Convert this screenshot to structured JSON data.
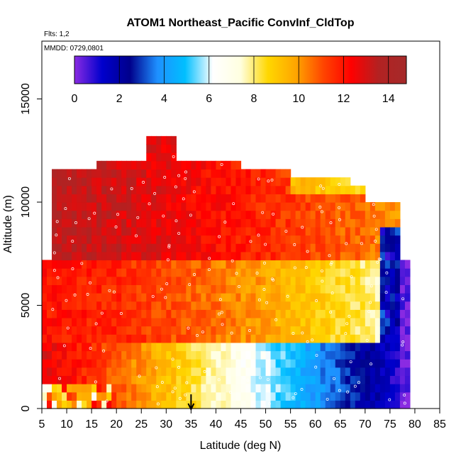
{
  "chart_data": {
    "type": "heatmap",
    "title": "ATOM1 Northeast_Pacific ConvInf_CldTop",
    "subtitle_flights": "Flts: 1,2",
    "subtitle_dates": "MMDD: 0729,0801",
    "xlabel": "Latitude (deg N)",
    "ylabel": "Altitude (m)",
    "xlim": [
      5,
      85
    ],
    "ylim": [
      0,
      17800
    ],
    "xticks": [
      "5",
      "10",
      "15",
      "20",
      "25",
      "30",
      "35",
      "40",
      "45",
      "50",
      "55",
      "60",
      "65",
      "70",
      "75",
      "80",
      "85"
    ],
    "yticks": [
      "0",
      "5000",
      "10000",
      "15000"
    ],
    "colorbar": {
      "range": [
        0,
        14.8
      ],
      "ticks": [
        "0",
        "2",
        "4",
        "6",
        "8",
        "10",
        "12",
        "14"
      ],
      "colors": [
        "#8a2be2",
        "#0000cd",
        "#00008b",
        "#1e90ff",
        "#00bfff",
        "#ffffff",
        "#ffffe0",
        "#ffd700",
        "#ffa500",
        "#ff4500",
        "#ff0000",
        "#b22222",
        "#a52a2a"
      ]
    },
    "marker": {
      "x": 35,
      "symbol": "arrow-up"
    },
    "grid": false,
    "legend": "top"
  }
}
